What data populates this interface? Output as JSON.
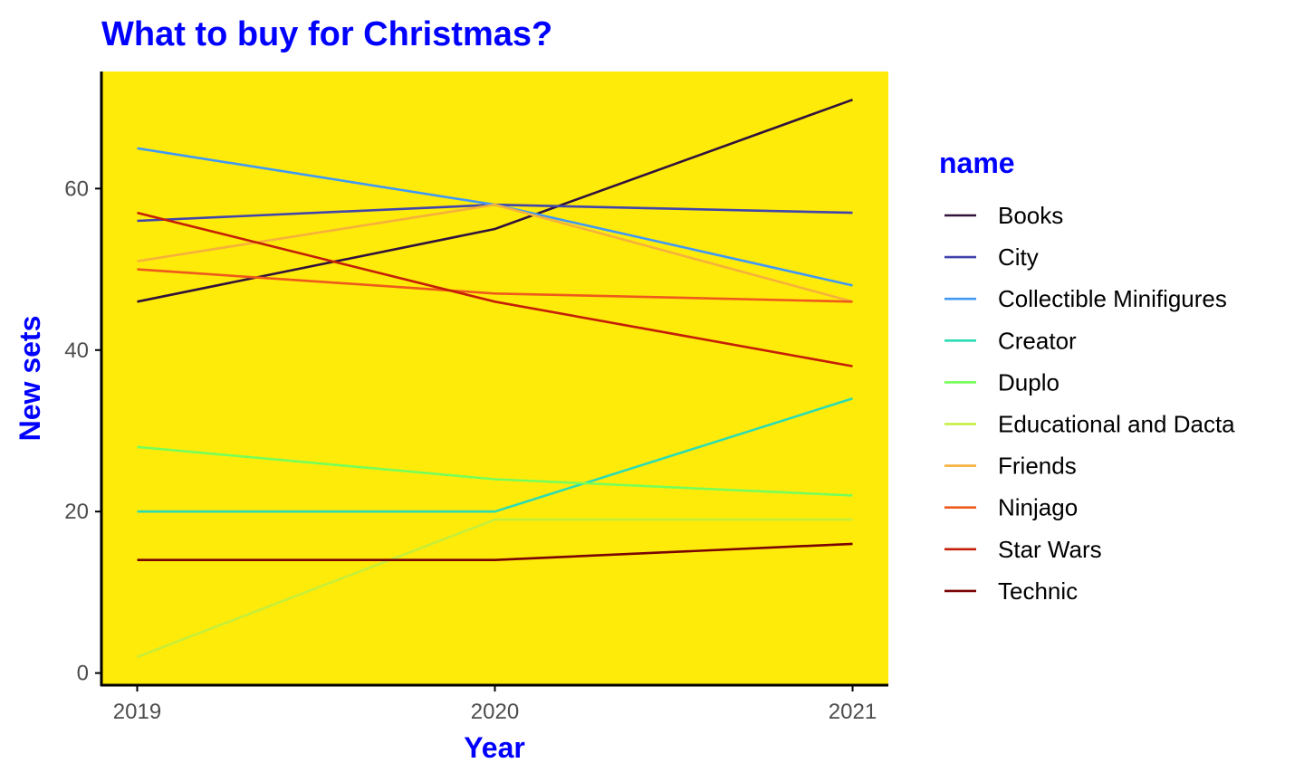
{
  "colors": {
    "title": "#0000FF",
    "panel": "#FFEB0A",
    "axis": "#000000"
  },
  "chart_data": {
    "type": "line",
    "title": "What to buy for Christmas?",
    "xlabel": "Year",
    "ylabel": "New sets",
    "x": [
      2019,
      2020,
      2021
    ],
    "x_ticks": [
      "2019",
      "2020",
      "2021"
    ],
    "y_ticks": [
      "0",
      "20",
      "40",
      "60"
    ],
    "xlim": [
      2018.9,
      2021.1
    ],
    "ylim": [
      -1.5,
      74.5
    ],
    "grid": false,
    "legend_title": "name",
    "legend_position": "right",
    "series": [
      {
        "name": "Books",
        "color": "#30123B",
        "values": [
          46,
          55,
          71
        ]
      },
      {
        "name": "City",
        "color": "#4145AB",
        "values": [
          56,
          58,
          57
        ]
      },
      {
        "name": "Collectible Minifigures",
        "color": "#4099F5",
        "values": [
          65,
          58,
          48
        ]
      },
      {
        "name": "Creator",
        "color": "#2CDCB2",
        "values": [
          20,
          20,
          34
        ]
      },
      {
        "name": "Duplo",
        "color": "#76FE59",
        "values": [
          28,
          24,
          22
        ]
      },
      {
        "name": "Educational and Dacta",
        "color": "#C5EE3A",
        "values": [
          2,
          19,
          19
        ]
      },
      {
        "name": "Friends",
        "color": "#F6B13B",
        "values": [
          51,
          58,
          46
        ]
      },
      {
        "name": "Ninjago",
        "color": "#EE5A1B",
        "values": [
          50,
          47,
          46
        ]
      },
      {
        "name": "Star Wars",
        "color": "#C41F06",
        "values": [
          57,
          46,
          38
        ]
      },
      {
        "name": "Technic",
        "color": "#7A0403",
        "values": [
          14,
          14,
          16
        ]
      }
    ]
  }
}
